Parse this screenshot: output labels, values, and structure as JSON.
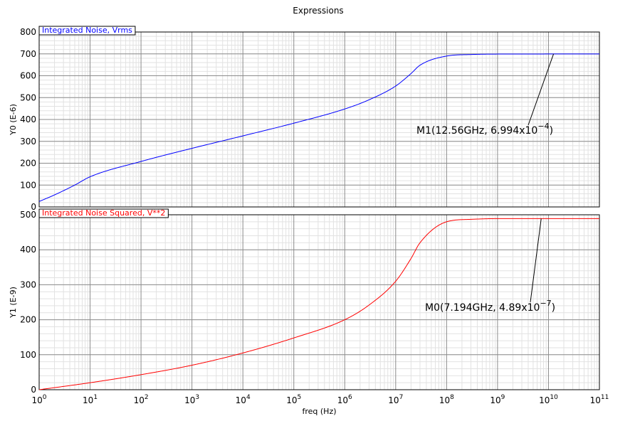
{
  "title": "Expressions",
  "chart_data": [
    {
      "type": "line",
      "panel": "top",
      "legend": "Integrated Noise, Vrms",
      "color": "#0000ff",
      "xscale": "log",
      "xlim": [
        1,
        100000000000
      ],
      "x_ticks": [
        {
          "base": "10",
          "exp": "0"
        },
        {
          "base": "10",
          "exp": "1"
        },
        {
          "base": "10",
          "exp": "2"
        },
        {
          "base": "10",
          "exp": "3"
        },
        {
          "base": "10",
          "exp": "4"
        },
        {
          "base": "10",
          "exp": "5"
        },
        {
          "base": "10",
          "exp": "6"
        },
        {
          "base": "10",
          "exp": "7"
        },
        {
          "base": "10",
          "exp": "8"
        },
        {
          "base": "10",
          "exp": "9"
        },
        {
          "base": "10",
          "exp": "10"
        },
        {
          "base": "10",
          "exp": "11"
        }
      ],
      "ylabel": "Y0 (E-6)",
      "ylim": [
        0,
        800
      ],
      "y_ticks": [
        "0",
        "100",
        "200",
        "300",
        "400",
        "500",
        "600",
        "700",
        "800"
      ],
      "grid": true,
      "x": [
        1,
        2,
        5,
        10,
        100,
        1000,
        10000,
        100000,
        1000000,
        3000000,
        10000000,
        20000000,
        30000000,
        100000000,
        300000000,
        1000000000,
        12560000000,
        100000000000
      ],
      "y": [
        25,
        55,
        100,
        138,
        208,
        268,
        325,
        383,
        448,
        490,
        553,
        610,
        648,
        690,
        697,
        699,
        699.4,
        699.4
      ],
      "marker": {
        "label": "M1(12.56GHz, 6.994x10",
        "exp": "−4",
        "close": ")",
        "x": 12560000000,
        "y": 699.4
      }
    },
    {
      "type": "line",
      "panel": "bottom",
      "legend": "Integrated Noise Squared, V**2",
      "color": "#ff0000",
      "xscale": "log",
      "xlim": [
        1,
        100000000000
      ],
      "xlabel": "freq (Hz)",
      "ylabel": "Y1 (E-9)",
      "ylim": [
        0,
        500
      ],
      "y_ticks": [
        "0",
        "100",
        "200",
        "300",
        "400",
        "500"
      ],
      "grid": true,
      "x": [
        1,
        10,
        100,
        1000,
        10000,
        100000,
        1000000,
        3000000,
        10000000,
        20000000,
        30000000,
        100000000,
        300000000,
        1000000000,
        7194000000,
        100000000000
      ],
      "y": [
        0,
        20,
        43,
        70,
        105,
        148,
        200,
        242,
        310,
        375,
        420,
        480,
        487,
        489,
        489,
        489
      ],
      "marker": {
        "label": "M0(7.194GHz, 4.89x10",
        "exp": "−7",
        "close": ")",
        "x": 7194000000,
        "y": 489
      }
    }
  ]
}
